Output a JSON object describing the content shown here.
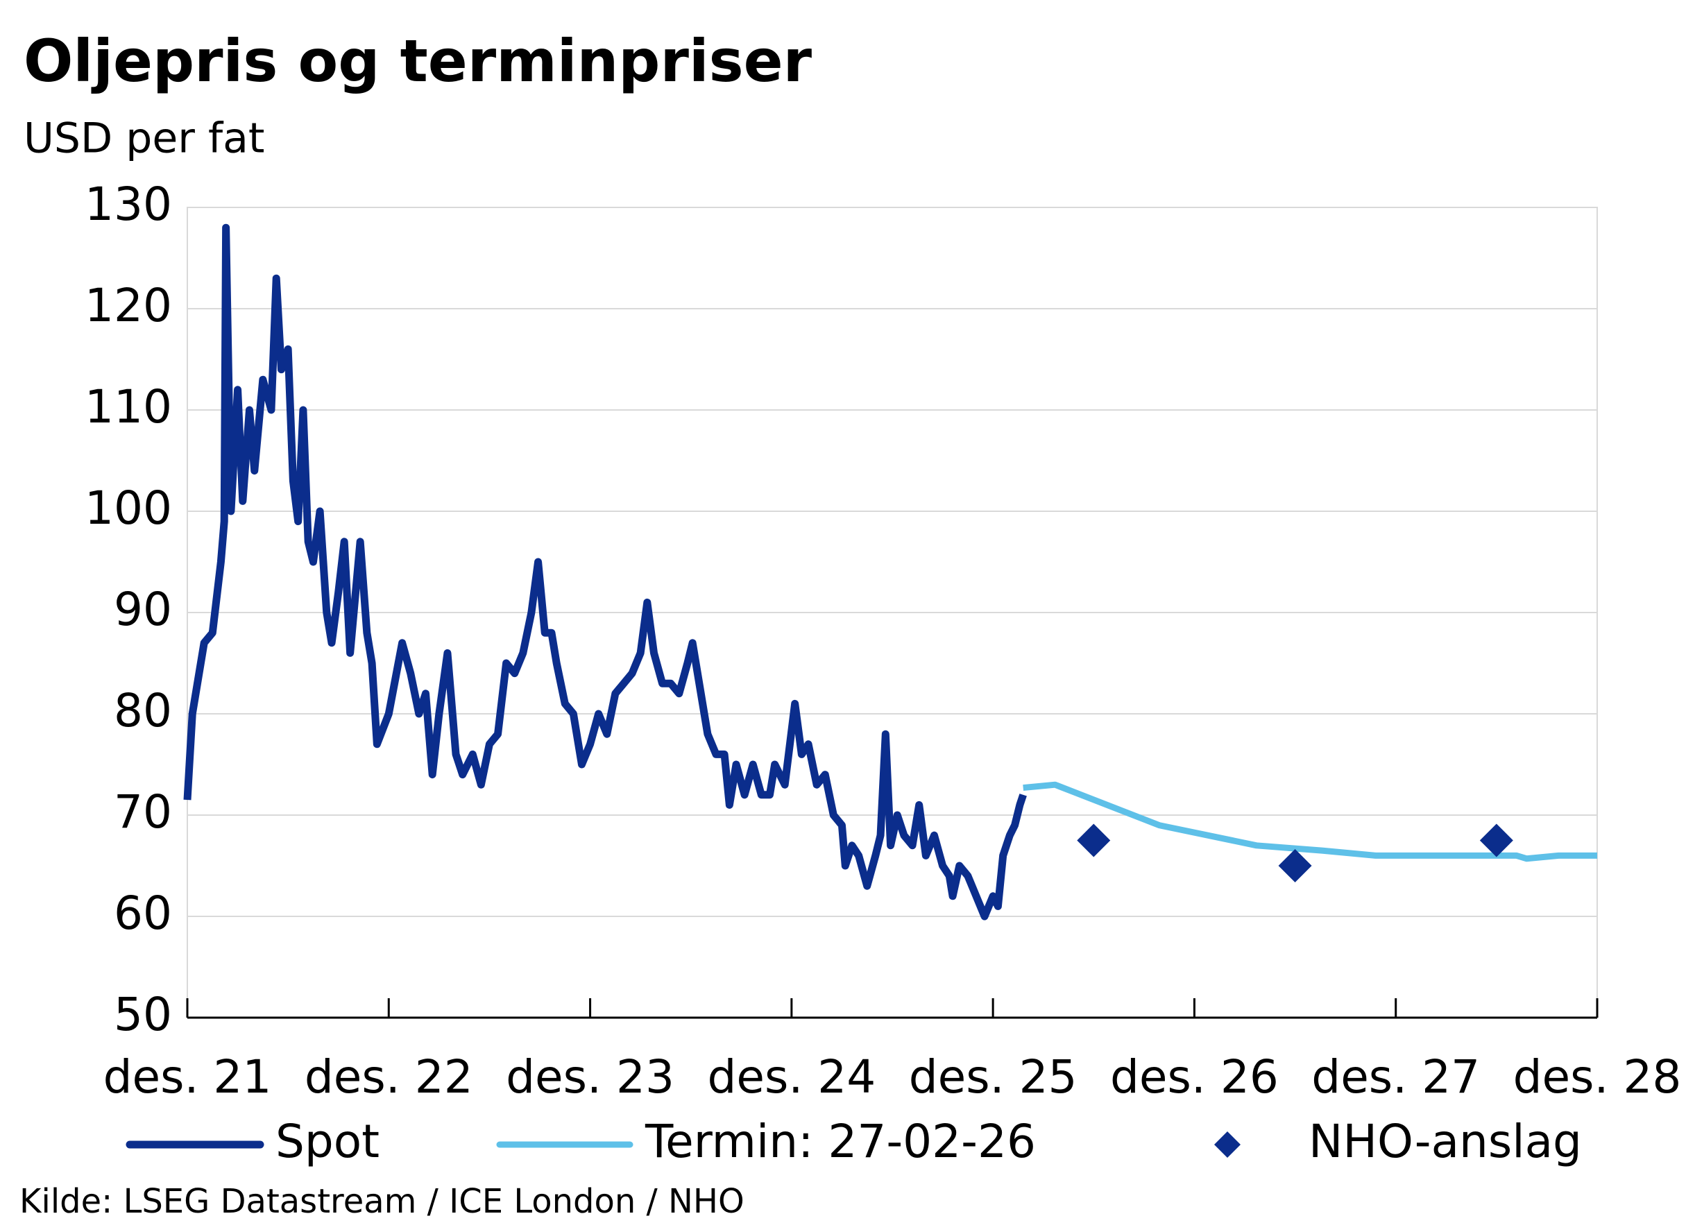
{
  "chart_data": {
    "type": "line",
    "title": "Oljepris og terminpriser",
    "subtitle": "USD per fat",
    "source": "Kilde: LSEG Datastream / ICE London / NHO",
    "xlim": [
      0,
      84
    ],
    "xticks": [
      {
        "value": 0,
        "label": "des. 21"
      },
      {
        "value": 12,
        "label": "des. 22"
      },
      {
        "value": 24,
        "label": "des. 23"
      },
      {
        "value": 36,
        "label": "des. 24"
      },
      {
        "value": 48,
        "label": "des. 25"
      },
      {
        "value": 60,
        "label": "des. 26"
      },
      {
        "value": 72,
        "label": "des. 27"
      },
      {
        "value": 84,
        "label": "des. 28"
      }
    ],
    "ylim": [
      50,
      130
    ],
    "yticks": [
      50,
      60,
      70,
      80,
      90,
      100,
      110,
      120,
      130
    ],
    "grid": true,
    "legend": "bottom",
    "series": [
      {
        "name": "Spot",
        "color": "#0b2d8c",
        "style": "line",
        "x": [
          0,
          0.3,
          0.7,
          1,
          1.5,
          2,
          2.2,
          2.3,
          2.6,
          3,
          3.3,
          3.7,
          4,
          4.5,
          5,
          5.3,
          5.6,
          6,
          6.3,
          6.6,
          6.9,
          7.2,
          7.5,
          7.9,
          8.3,
          8.6,
          9,
          9.35,
          9.7,
          10.3,
          10.7,
          11,
          11.3,
          12,
          12.8,
          13.3,
          13.8,
          14.2,
          14.6,
          15,
          15.5,
          16,
          16.4,
          17,
          17.5,
          18,
          18.5,
          19,
          19.5,
          20,
          20.5,
          20.9,
          21.3,
          21.7,
          22,
          22.5,
          23,
          23.5,
          24,
          24.5,
          25,
          25.5,
          26,
          26.5,
          27,
          27.4,
          27.8,
          28.3,
          28.8,
          29.3,
          29.8,
          30.1,
          30.6,
          31,
          31.5,
          32,
          32.3,
          32.7,
          33.2,
          33.7,
          34.2,
          34.7,
          35,
          35.6,
          36.2,
          36.6,
          37,
          37.5,
          38,
          38.5,
          39,
          39.2,
          39.6,
          40,
          40.5,
          41,
          41.3,
          41.6,
          41.9,
          42.3,
          42.7,
          43.2,
          43.6,
          44,
          44.5,
          45,
          45.4,
          45.6,
          46,
          46.5,
          47,
          47.5,
          48,
          48.3,
          48.6,
          49,
          49.3,
          49.6,
          49.8
        ],
        "values": [
          71.5,
          80,
          84,
          87,
          88,
          95,
          99,
          128,
          100,
          112,
          101,
          110,
          104,
          113,
          110,
          123,
          114,
          116,
          103,
          99,
          110,
          97,
          95,
          100,
          90,
          87,
          92,
          97,
          86,
          97,
          88,
          85,
          77,
          80,
          87,
          84,
          80,
          82,
          74,
          80,
          86,
          76,
          74,
          76,
          73,
          77,
          78,
          85,
          84,
          86,
          90,
          95,
          88,
          88,
          85,
          81,
          80,
          75,
          77,
          80,
          78,
          82,
          83,
          84,
          86,
          91,
          86,
          83,
          83,
          82,
          85,
          87,
          82,
          78,
          76,
          76,
          71,
          75,
          72,
          75,
          72,
          72,
          75,
          73,
          81,
          76,
          77,
          73,
          74,
          70,
          69,
          65,
          67,
          66,
          63,
          66,
          68,
          78,
          67,
          70,
          68,
          67,
          71,
          66,
          68,
          65,
          64,
          62,
          65,
          64,
          62,
          60,
          62,
          61,
          66,
          68,
          69,
          71,
          72
        ]
      },
      {
        "name": "Termin: 27-02-26",
        "color": "#5ec0e8",
        "style": "line",
        "x": [
          49.8,
          51.7,
          57.9,
          63.7,
          67.6,
          70.8,
          79.2,
          79.8,
          81.7,
          84
        ],
        "values": [
          72.7,
          73,
          69,
          67,
          66.5,
          66,
          66,
          65.7,
          66,
          66
        ]
      },
      {
        "name": "NHO-anslag",
        "color": "#0b2d8c",
        "style": "diamond",
        "x": [
          54,
          66,
          78
        ],
        "values": [
          67.5,
          65,
          67.5
        ]
      }
    ]
  }
}
